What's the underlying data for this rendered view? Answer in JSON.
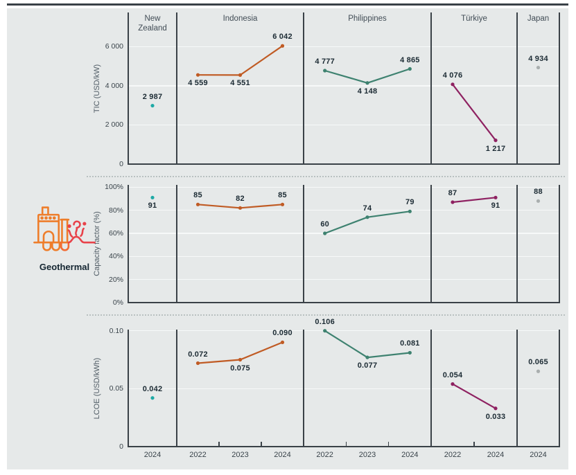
{
  "figure": {
    "technology": {
      "label": "Geothermal",
      "icon": "geothermal-plant-icon"
    },
    "colors": {
      "background": "#e6e9e9",
      "axis_line": "#3a4147",
      "grid_line": "#f7f9f9",
      "dotted_separator": "#b9c0c0",
      "value_label": "#1b2a33",
      "tick_label": "#39434a",
      "header_label": "#414c55",
      "axis_title": "#515d66",
      "year_label": "#39434a",
      "technology_label": "#142531",
      "icon_orange": "#ee7d2a",
      "icon_red": "#e8424a",
      "icon_red_orange": "#f26b33"
    }
  },
  "chart_data": {
    "type": "line",
    "layout": "small-multiples: 3 metric rows × 5 country panels, shared year x-axis, grid on, no legend",
    "countries": [
      {
        "name": "New Zealand",
        "years": [
          "2024"
        ],
        "color": "#1ea9a5"
      },
      {
        "name": "Indonesia",
        "years": [
          "2022",
          "2023",
          "2024"
        ],
        "color": "#c05b24"
      },
      {
        "name": "Philippines",
        "years": [
          "2022",
          "2023",
          "2024"
        ],
        "color": "#3e8270"
      },
      {
        "name": "Türkiye",
        "years": [
          "2022",
          "2024"
        ],
        "color": "#8e2161"
      },
      {
        "name": "Japan",
        "years": [
          "2024"
        ],
        "color": "#a9aeae"
      }
    ],
    "rows": [
      {
        "metric": "tic",
        "ylabel": "TIC (USD/kW)",
        "ylim": [
          0,
          7750
        ],
        "yticks": [
          {
            "value": 0,
            "label": "0"
          },
          {
            "value": 2000,
            "label": "2 000"
          },
          {
            "value": 4000,
            "label": "4 000"
          },
          {
            "value": 6000,
            "label": "6 000"
          }
        ],
        "series": [
          {
            "country": "New Zealand",
            "values": [
              2987
            ],
            "labels": [
              "2 987"
            ],
            "label_pos": [
              "above"
            ]
          },
          {
            "country": "Indonesia",
            "values": [
              4559,
              4551,
              6042
            ],
            "labels": [
              "4 559",
              "4 551",
              "6 042"
            ],
            "label_pos": [
              "below",
              "below",
              "above"
            ]
          },
          {
            "country": "Philippines",
            "values": [
              4777,
              4148,
              4865
            ],
            "labels": [
              "4 777",
              "4 148",
              "4 865"
            ],
            "label_pos": [
              "above",
              "below",
              "above"
            ]
          },
          {
            "country": "Türkiye",
            "values": [
              4076,
              1217
            ],
            "labels": [
              "4 076",
              "1 217"
            ],
            "label_pos": [
              "above",
              "below"
            ]
          },
          {
            "country": "Japan",
            "values": [
              4934
            ],
            "labels": [
              "4 934"
            ],
            "label_pos": [
              "above"
            ]
          }
        ]
      },
      {
        "metric": "capacity_factor",
        "ylabel": "Capacity factor (%)",
        "ylim": [
          0,
          102
        ],
        "yticks": [
          {
            "value": 0,
            "label": "0%"
          },
          {
            "value": 20,
            "label": "20%"
          },
          {
            "value": 40,
            "label": "40%"
          },
          {
            "value": 60,
            "label": "60%"
          },
          {
            "value": 80,
            "label": "80%"
          },
          {
            "value": 100,
            "label": "100%"
          }
        ],
        "series": [
          {
            "country": "New Zealand",
            "values": [
              91
            ],
            "labels": [
              "91"
            ],
            "label_pos": [
              "below"
            ]
          },
          {
            "country": "Indonesia",
            "values": [
              85,
              82,
              85
            ],
            "labels": [
              "85",
              "82",
              "85"
            ],
            "label_pos": [
              "above",
              "above",
              "above"
            ]
          },
          {
            "country": "Philippines",
            "values": [
              60,
              74,
              79
            ],
            "labels": [
              "60",
              "74",
              "79"
            ],
            "label_pos": [
              "above",
              "above",
              "above"
            ]
          },
          {
            "country": "Türkiye",
            "values": [
              87,
              91
            ],
            "labels": [
              "87",
              "91"
            ],
            "label_pos": [
              "above",
              "below"
            ]
          },
          {
            "country": "Japan",
            "values": [
              88
            ],
            "labels": [
              "88"
            ],
            "label_pos": [
              "above"
            ]
          }
        ]
      },
      {
        "metric": "lcoe",
        "ylabel": "LCOE (USD/kWh)",
        "ylim": [
          0,
          0.101
        ],
        "clamp_max": 0.1,
        "yticks": [
          {
            "value": 0,
            "label": "0"
          },
          {
            "value": 0.05,
            "label": "0.05"
          },
          {
            "value": 0.1,
            "label": "0.10"
          }
        ],
        "series": [
          {
            "country": "New Zealand",
            "values": [
              0.042
            ],
            "labels": [
              "0.042"
            ],
            "label_pos": [
              "above"
            ]
          },
          {
            "country": "Indonesia",
            "values": [
              0.072,
              0.075,
              0.09
            ],
            "labels": [
              "0.072",
              "0.075",
              "0.090"
            ],
            "label_pos": [
              "above",
              "below",
              "above"
            ]
          },
          {
            "country": "Philippines",
            "values": [
              0.106,
              0.077,
              0.081
            ],
            "labels": [
              "0.106",
              "0.077",
              "0.081"
            ],
            "label_pos": [
              "above",
              "below",
              "above"
            ]
          },
          {
            "country": "Türkiye",
            "values": [
              0.054,
              0.033
            ],
            "labels": [
              "0.054",
              "0.033"
            ],
            "label_pos": [
              "above",
              "below"
            ]
          },
          {
            "country": "Japan",
            "values": [
              0.065
            ],
            "labels": [
              "0.065"
            ],
            "label_pos": [
              "above"
            ]
          }
        ]
      }
    ]
  }
}
